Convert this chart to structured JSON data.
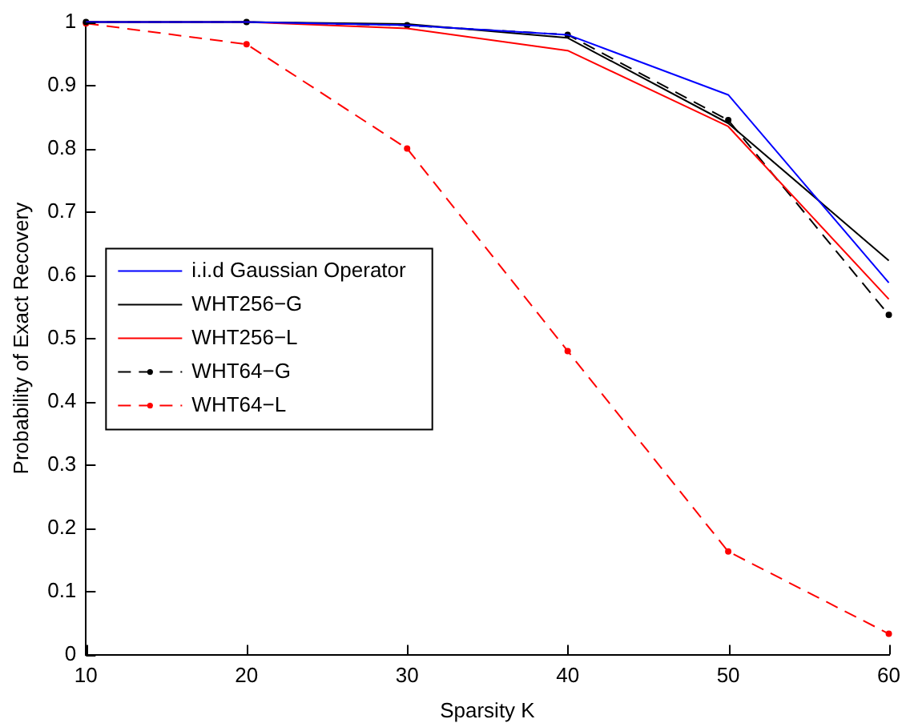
{
  "chart_data": {
    "type": "line",
    "xlabel": "Sparsity K",
    "ylabel": "Probability of Exact Recovery",
    "x": [
      10,
      20,
      30,
      40,
      50,
      60
    ],
    "xlim": [
      10,
      60
    ],
    "xticks": [
      10,
      20,
      30,
      40,
      50,
      60
    ],
    "ylim": [
      0,
      1
    ],
    "yticks": [
      0,
      0.1,
      0.2,
      0.3,
      0.4,
      0.5,
      0.6,
      0.7,
      0.8,
      0.9,
      1
    ],
    "grid": false,
    "legend": "left",
    "series": [
      {
        "name": "i.i.d Gaussian Operator",
        "color": "#0000ff",
        "values": [
          1,
          1,
          0.995,
          0.98,
          0.885,
          0.588
        ],
        "line_style": "solid"
      },
      {
        "name": "WHT256−G",
        "color": "#000000",
        "values": [
          1,
          1,
          0.997,
          0.975,
          0.84,
          0.623
        ],
        "line_style": "solid"
      },
      {
        "name": "WHT256−L",
        "color": "#ff0000",
        "values": [
          1,
          1,
          0.99,
          0.955,
          0.835,
          0.562
        ],
        "line_style": "solid"
      },
      {
        "name": "WHT64−G",
        "color": "#000000",
        "values": [
          1,
          1,
          0.995,
          0.98,
          0.845,
          0.537
        ],
        "line_style": "dashed",
        "marker": "circle"
      },
      {
        "name": "WHT64−L",
        "color": "#ff0000",
        "values": [
          0.998,
          0.965,
          0.8,
          0.48,
          0.163,
          0.033
        ],
        "line_style": "dashed",
        "marker": "circle"
      }
    ]
  }
}
